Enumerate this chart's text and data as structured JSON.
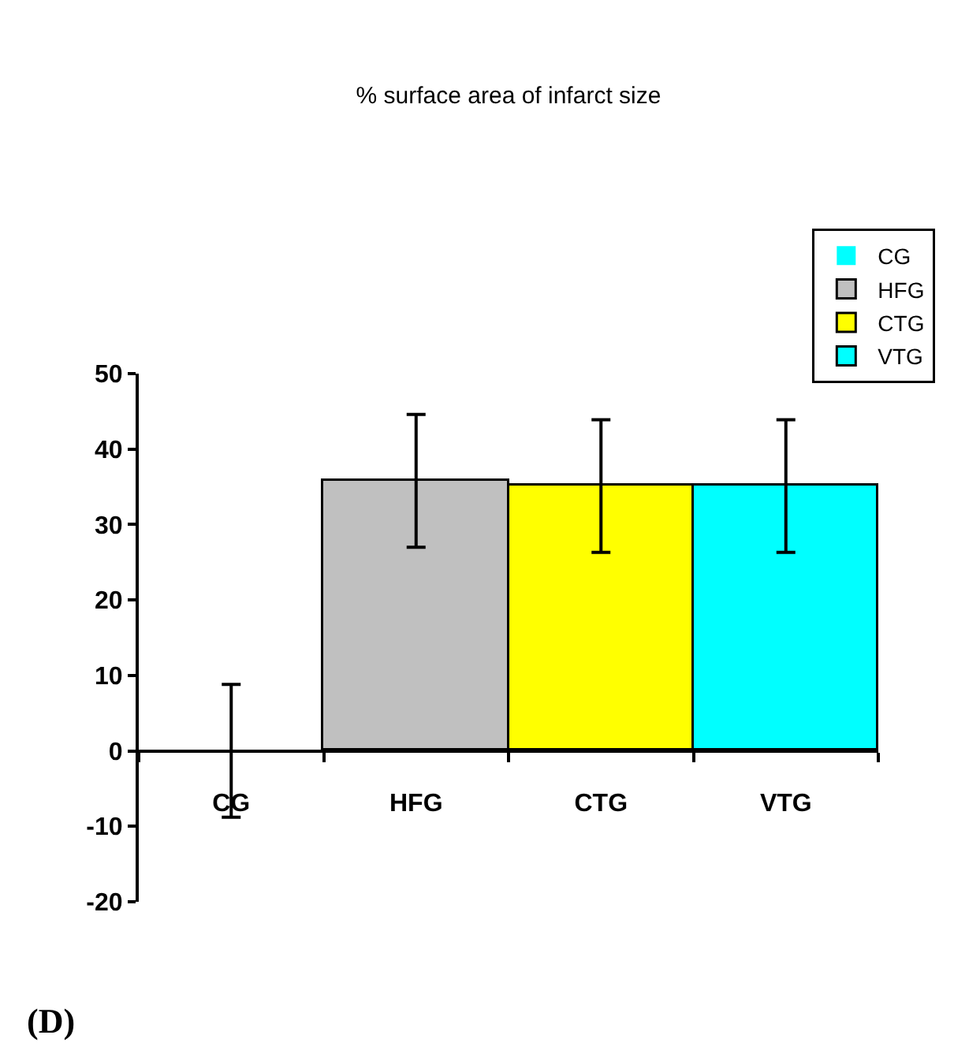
{
  "chart_data": {
    "type": "bar",
    "title": "% surface area of infarct size",
    "categories": [
      "CG",
      "HFG",
      "CTG",
      "VTG"
    ],
    "series": [
      {
        "name": "CG",
        "color": "#00ffff",
        "values": [
          0,
          null,
          null,
          null
        ],
        "errors": [
          8.8,
          null,
          null,
          null
        ]
      },
      {
        "name": "HFG",
        "color": "#c0c0c0",
        "values": [
          null,
          35.8,
          null,
          null
        ],
        "errors": [
          null,
          8.8,
          null,
          null
        ]
      },
      {
        "name": "CTG",
        "color": "#ffff00",
        "values": [
          null,
          null,
          35.1,
          null
        ],
        "errors": [
          null,
          null,
          8.8,
          null
        ]
      },
      {
        "name": "VTG",
        "color": "#00ffff",
        "values": [
          null,
          null,
          null,
          35.1
        ],
        "errors": [
          null,
          null,
          null,
          8.8
        ]
      }
    ],
    "ylim": [
      -20,
      50
    ],
    "yticks": [
      -20,
      -10,
      0,
      10,
      20,
      30,
      40,
      50
    ],
    "legend": "top right",
    "annotations": [
      "(D)"
    ]
  }
}
